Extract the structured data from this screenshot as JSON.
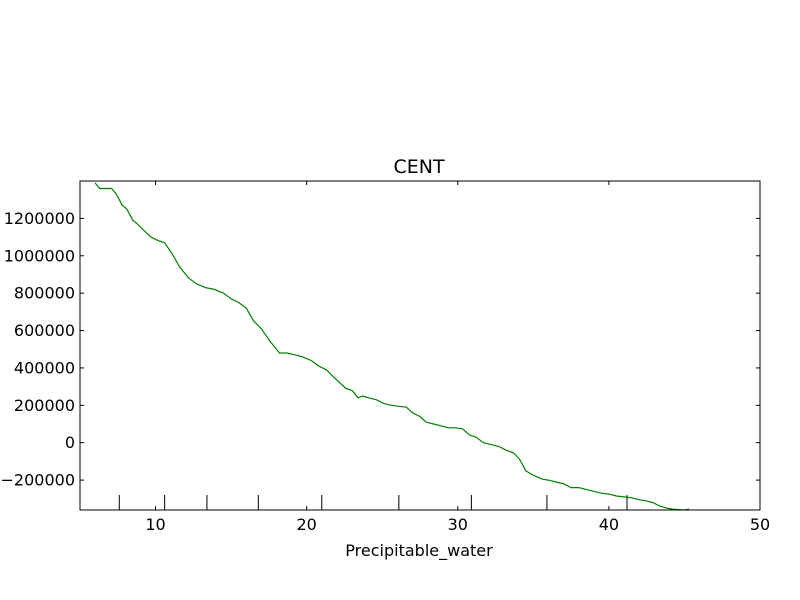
{
  "chart_data": {
    "type": "line",
    "title": "CENT",
    "xlabel": "Precipitable_water",
    "ylabel": "",
    "xlim": [
      5,
      50
    ],
    "ylim": [
      -360000,
      1400000
    ],
    "xticks": [
      10,
      20,
      30,
      40,
      50
    ],
    "xtick_labels": [
      "10",
      "20",
      "30",
      "40",
      "50"
    ],
    "yticks": [
      -200000,
      0,
      200000,
      400000,
      600000,
      800000,
      1000000,
      1200000
    ],
    "ytick_labels": [
      "−200000",
      "0",
      "200000",
      "400000",
      "600000",
      "800000",
      "1000000",
      "1200000"
    ],
    "rug_x": [
      7.6,
      10.6,
      13.4,
      16.8,
      21.0,
      26.1,
      30.9,
      35.9,
      41.2
    ],
    "grid": false,
    "series": [
      {
        "color": "#008000",
        "x": [
          6.0,
          6.3,
          6.7,
          7.1,
          7.4,
          7.8,
          8.1,
          8.5,
          8.8,
          9.3,
          9.7,
          10.2,
          10.6,
          11.1,
          11.6,
          12.2,
          12.7,
          13.3,
          13.9,
          14.5,
          15.0,
          15.5,
          16.0,
          16.5,
          17.0,
          17.6,
          18.2,
          18.7,
          19.2,
          19.7,
          20.3,
          20.8,
          21.3,
          21.8,
          22.2,
          22.6,
          23.0,
          23.4,
          23.7,
          24.1,
          24.6,
          25.1,
          25.6,
          26.1,
          26.6,
          27.0,
          27.5,
          27.9,
          28.4,
          28.9,
          29.4,
          29.8,
          30.3,
          30.8,
          31.2,
          31.7,
          32.2,
          32.7,
          33.2,
          33.7,
          34.1,
          34.5,
          34.9,
          35.3,
          35.6,
          36.0,
          36.5,
          37.0,
          37.5,
          38.0,
          38.5,
          39.0,
          39.5,
          40.0,
          40.5,
          41.0,
          41.5,
          42.0,
          42.4,
          42.9,
          43.4,
          43.8,
          44.2,
          44.6,
          45.0,
          45.3
        ],
        "y": [
          1390000,
          1360000,
          1360000,
          1360000,
          1330000,
          1270000,
          1250000,
          1190000,
          1170000,
          1130000,
          1100000,
          1080000,
          1070000,
          1010000,
          940000,
          880000,
          850000,
          830000,
          820000,
          800000,
          770000,
          750000,
          720000,
          650000,
          610000,
          540000,
          480000,
          480000,
          470000,
          460000,
          440000,
          410000,
          390000,
          350000,
          320000,
          290000,
          280000,
          240000,
          250000,
          240000,
          230000,
          210000,
          200000,
          195000,
          190000,
          160000,
          140000,
          110000,
          100000,
          90000,
          80000,
          80000,
          75000,
          40000,
          30000,
          0,
          -10000,
          -20000,
          -40000,
          -55000,
          -90000,
          -150000,
          -170000,
          -185000,
          -195000,
          -200000,
          -210000,
          -220000,
          -240000,
          -240000,
          -250000,
          -260000,
          -270000,
          -275000,
          -285000,
          -290000,
          -295000,
          -305000,
          -310000,
          -320000,
          -340000,
          -350000,
          -355000,
          -358000,
          -360000,
          -355000
        ]
      }
    ]
  }
}
